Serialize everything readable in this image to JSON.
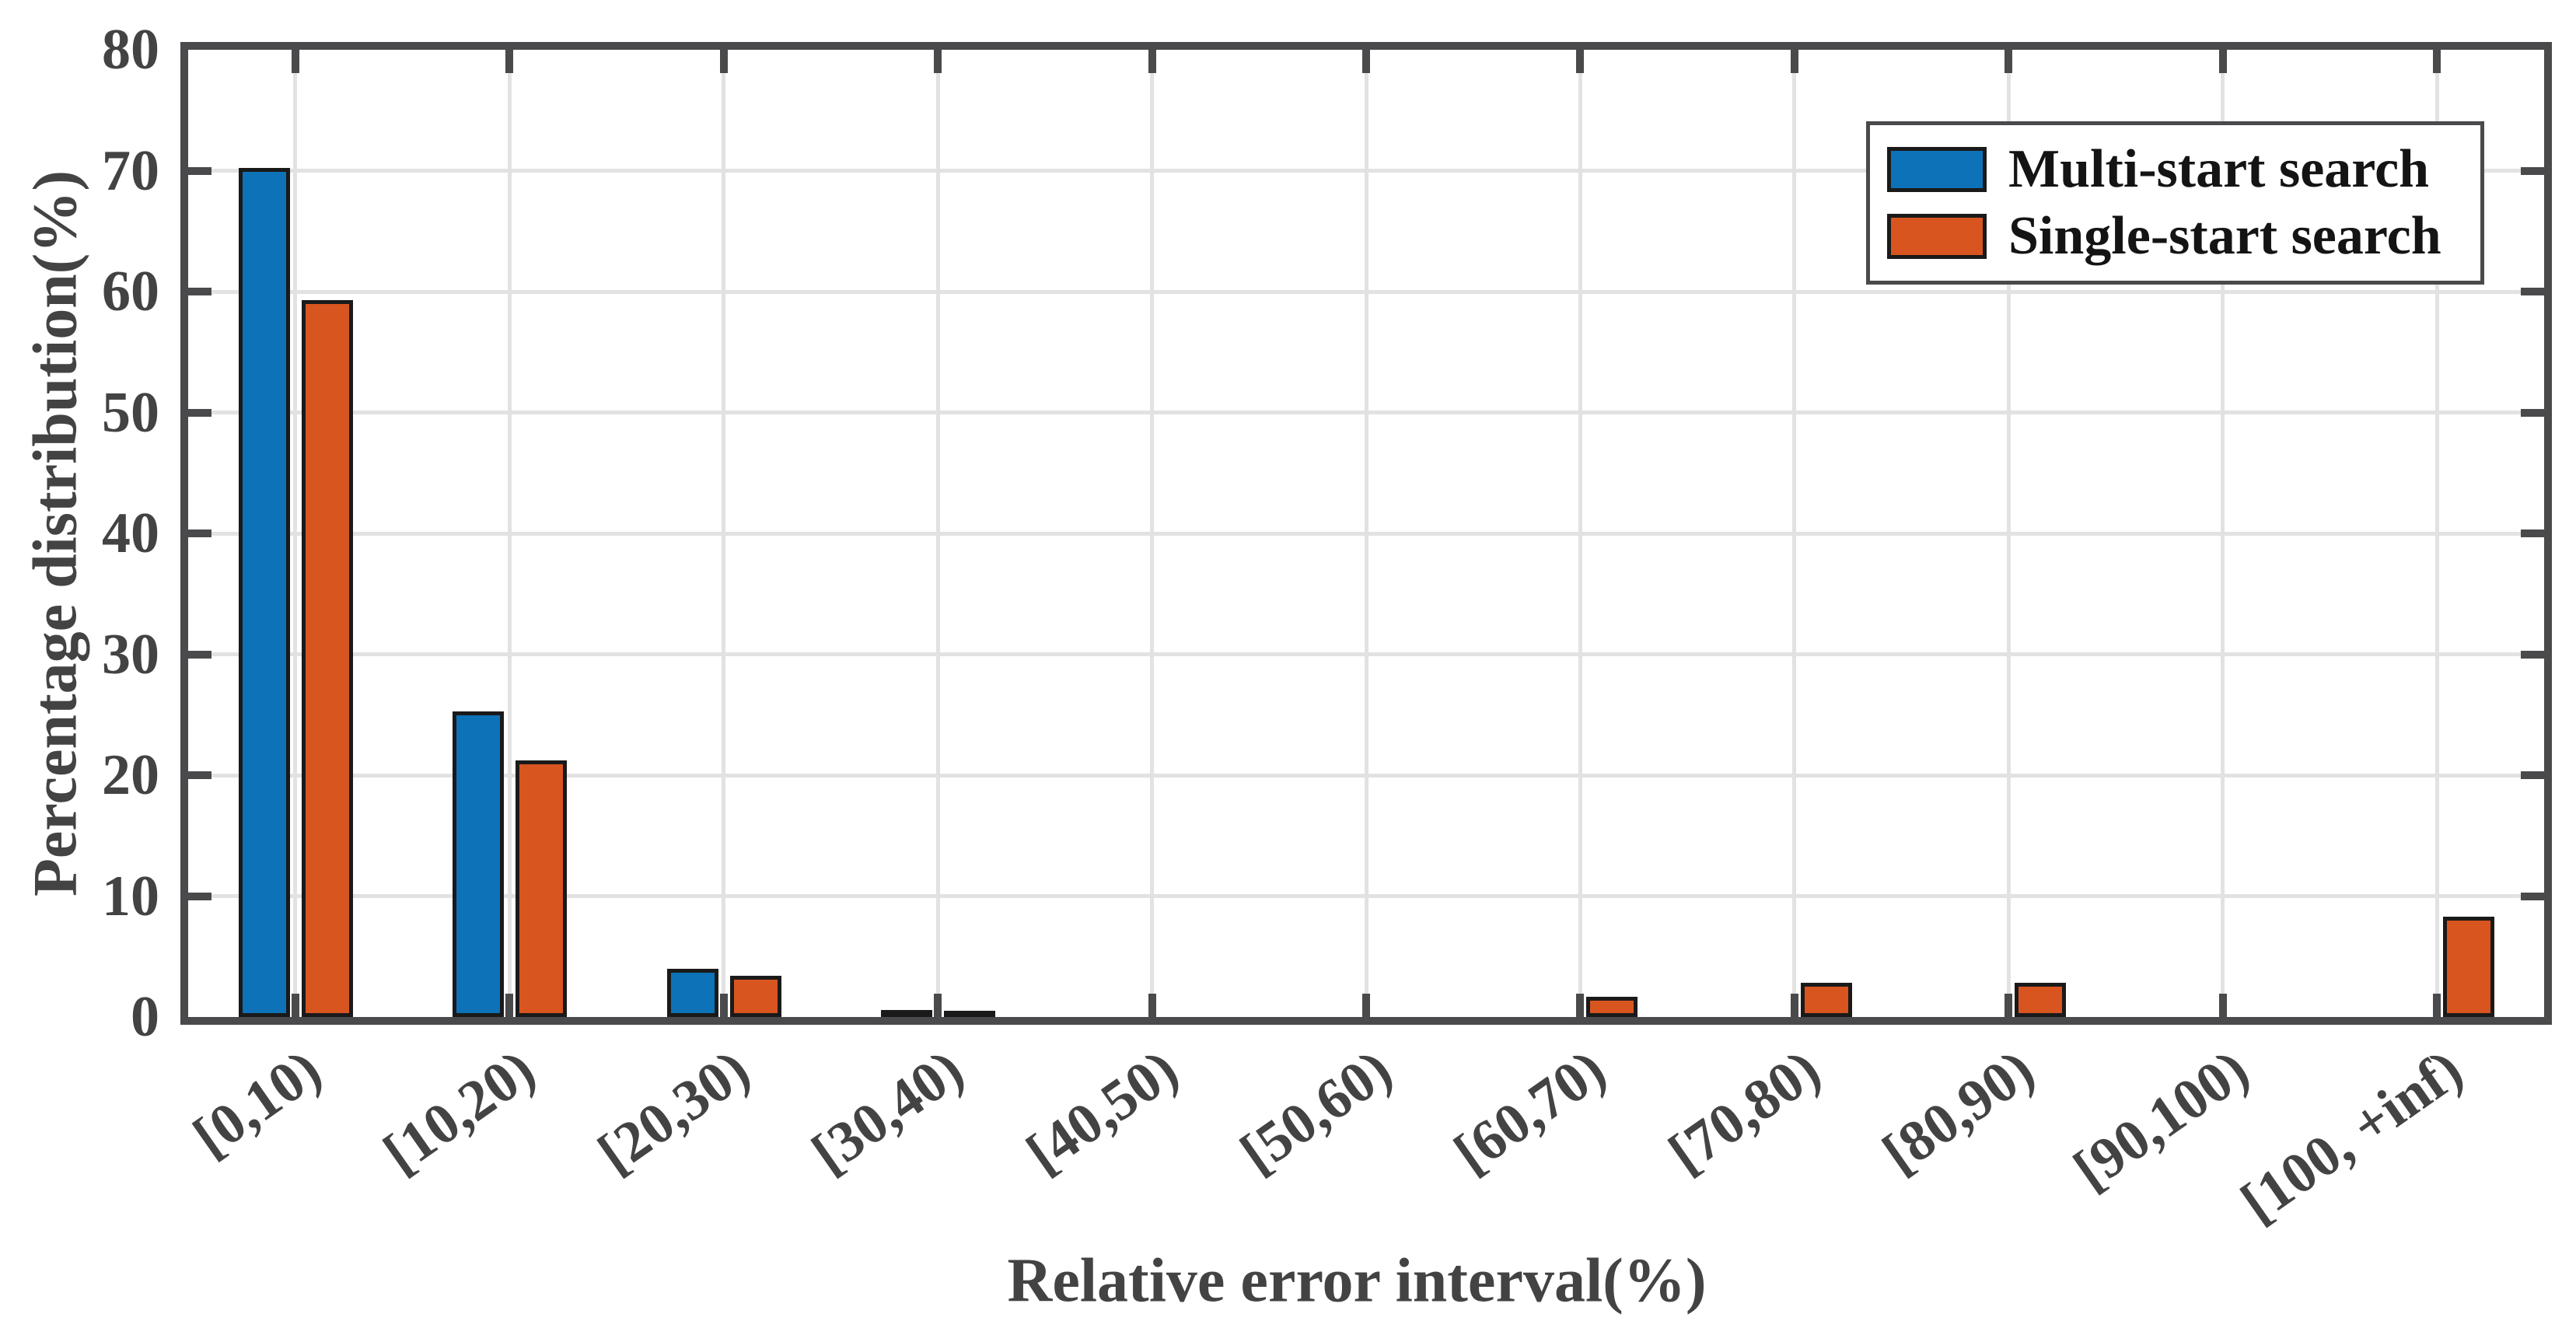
{
  "chart_data": {
    "type": "bar",
    "title": "",
    "xlabel": "Relative error interval(%)",
    "ylabel": "Percentage distribution(%)",
    "categories": [
      "[0,10)",
      "[10,20)",
      "[20,30)",
      "[30,40)",
      "[40,50)",
      "[50,60)",
      "[60,70)",
      "[70,80)",
      "[80,90)",
      "[90,100)",
      "[100, +inf)"
    ],
    "series": [
      {
        "name": "Multi-start search",
        "color": "#0d72b7",
        "values": [
          70.2,
          25.3,
          4.0,
          0.6,
          0,
          0,
          0,
          0,
          0,
          0,
          0
        ]
      },
      {
        "name": "Single-start search",
        "color": "#d85520",
        "values": [
          59.3,
          21.2,
          3.4,
          0.5,
          0,
          0,
          1.7,
          2.8,
          2.8,
          0,
          8.3
        ]
      }
    ],
    "ylim": [
      0,
      80
    ],
    "yticks": [
      0,
      10,
      20,
      30,
      40,
      50,
      60,
      70,
      80
    ],
    "grid": true,
    "legend_position": "top-right",
    "style": {
      "background": "#ffffff",
      "axis_color": "#4a4a4d",
      "grid_color": "#e2e2e2",
      "tick_label_color": "#434343",
      "axis_title_color": "#434343",
      "bar_edge_color": "#1a1a1a",
      "legend_text_color": "#141414",
      "x_tick_label_rotation_deg": -35
    }
  }
}
